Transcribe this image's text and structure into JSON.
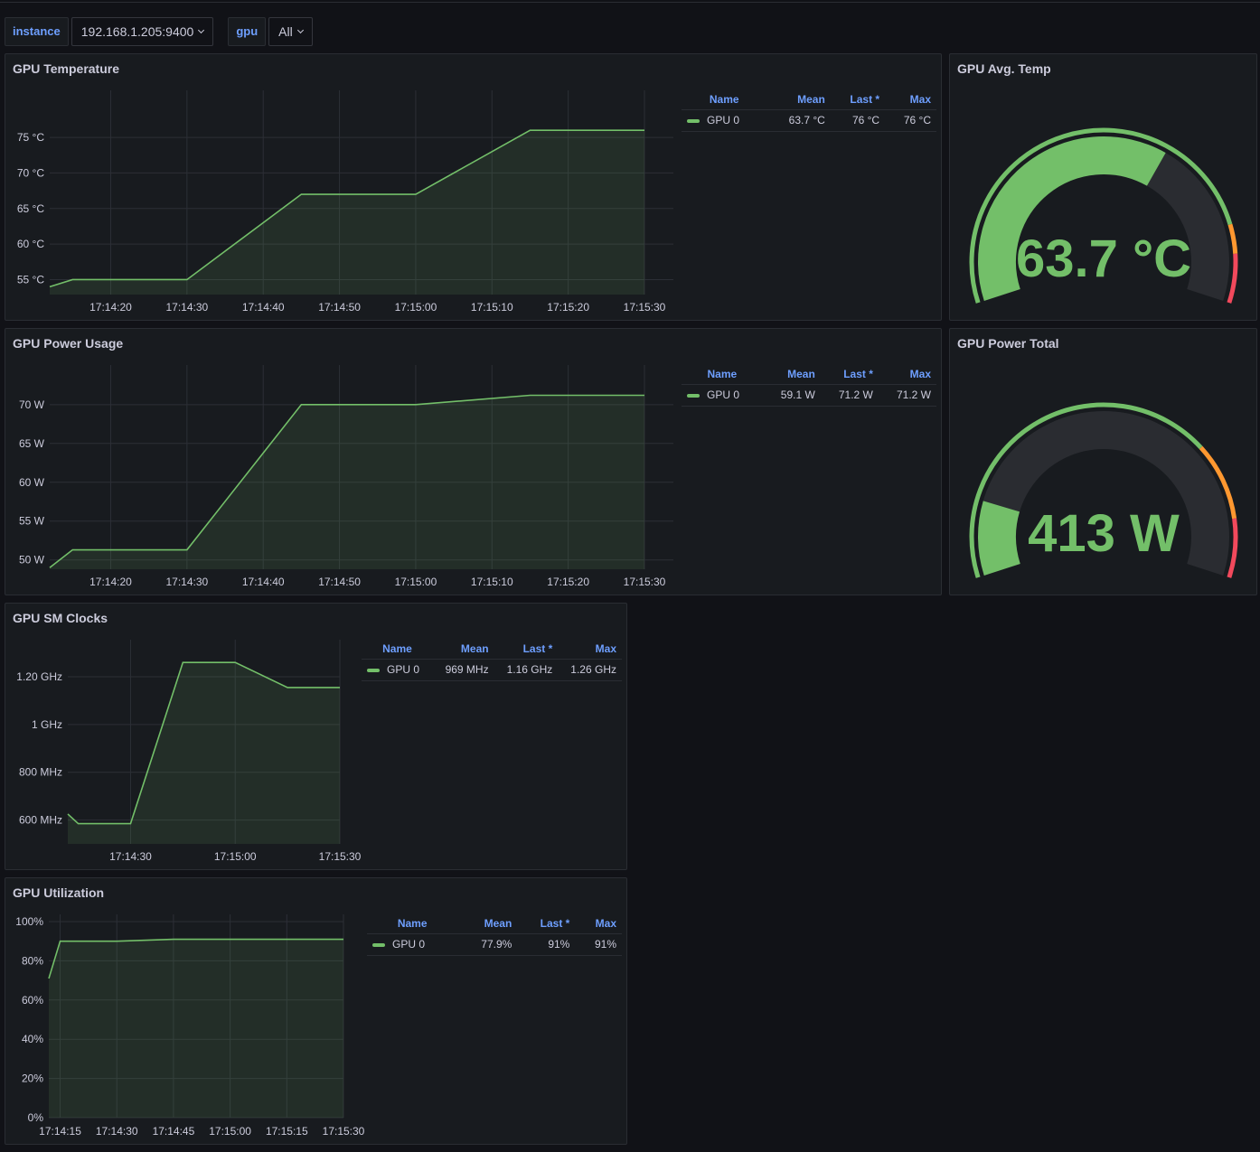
{
  "variables": {
    "instance": {
      "label": "instance",
      "value": "192.168.1.205:9400"
    },
    "gpu": {
      "label": "gpu",
      "value": "All"
    }
  },
  "colors": {
    "series": "#73bf69",
    "warn": "#fade2a",
    "orange": "#ff9830",
    "critical": "#f2495c"
  },
  "panels": {
    "temperature": {
      "title": "GPU Temperature",
      "legend": {
        "headers": [
          "Name",
          "Mean",
          "Last *",
          "Max"
        ],
        "rows": [
          {
            "name": "GPU 0",
            "mean": "63.7 °C",
            "last": "76 °C",
            "max": "76 °C"
          }
        ]
      },
      "chart_data": {
        "type": "area",
        "x_ticks": [
          "17:14:20",
          "17:14:30",
          "17:14:40",
          "17:14:50",
          "17:15:00",
          "17:15:10",
          "17:15:20",
          "17:15:30"
        ],
        "x": [
          "17:14:12",
          "17:14:15",
          "17:14:30",
          "17:14:45",
          "17:15:00",
          "17:15:15",
          "17:15:30"
        ],
        "series": [
          {
            "name": "GPU 0",
            "values": [
              54,
              55,
              55,
              67,
              67,
              76,
              76
            ]
          }
        ],
        "y_ticks": [
          "55 °C",
          "60 °C",
          "65 °C",
          "70 °C",
          "75 °C"
        ],
        "ylim": [
          52.9,
          80.6
        ]
      }
    },
    "avg_temp": {
      "title": "GPU Avg. Temp",
      "value": "63.7 °C",
      "fraction": 0.637
    },
    "power": {
      "title": "GPU Power Usage",
      "legend": {
        "headers": [
          "Name",
          "Mean",
          "Last *",
          "Max"
        ],
        "rows": [
          {
            "name": "GPU 0",
            "mean": "59.1 W",
            "last": "71.2 W",
            "max": "71.2 W"
          }
        ]
      },
      "chart_data": {
        "type": "area",
        "x_ticks": [
          "17:14:20",
          "17:14:30",
          "17:14:40",
          "17:14:50",
          "17:15:00",
          "17:15:10",
          "17:15:20",
          "17:15:30"
        ],
        "x": [
          "17:14:12",
          "17:14:15",
          "17:14:30",
          "17:14:45",
          "17:15:00",
          "17:15:15",
          "17:15:30"
        ],
        "series": [
          {
            "name": "GPU 0",
            "values": [
              49,
              51.3,
              51.3,
              70,
              70,
              71.2,
              71.2
            ]
          }
        ],
        "y_ticks": [
          "50 W",
          "55 W",
          "60 W",
          "65 W",
          "70 W"
        ],
        "ylim": [
          48.8,
          74.4
        ]
      }
    },
    "power_total": {
      "title": "GPU Power Total",
      "value": "413 W",
      "fraction": 0.16
    },
    "clocks": {
      "title": "GPU SM Clocks",
      "legend": {
        "headers": [
          "Name",
          "Mean",
          "Last *",
          "Max"
        ],
        "rows": [
          {
            "name": "GPU 0",
            "mean": "969 MHz",
            "last": "1.16 GHz",
            "max": "1.26 GHz"
          }
        ]
      },
      "chart_data": {
        "type": "area",
        "x_ticks": [
          "17:14:30",
          "17:15:00",
          "17:15:30"
        ],
        "x": [
          "17:14:12",
          "17:14:15",
          "17:14:30",
          "17:14:45",
          "17:15:00",
          "17:15:15",
          "17:15:30"
        ],
        "series": [
          {
            "name": "GPU 0",
            "values": [
              625,
              585,
              585,
              1260,
              1260,
              1155,
              1155
            ]
          }
        ],
        "y_ticks": [
          "600 MHz",
          "800 MHz",
          "1 GHz",
          "1.20 GHz"
        ],
        "ylim": [
          500,
          1325
        ]
      }
    },
    "utilization": {
      "title": "GPU Utilization",
      "legend": {
        "headers": [
          "Name",
          "Mean",
          "Last *",
          "Max"
        ],
        "rows": [
          {
            "name": "GPU 0",
            "mean": "77.9%",
            "last": "91%",
            "max": "91%"
          }
        ]
      },
      "chart_data": {
        "type": "area",
        "x_ticks": [
          "17:14:15",
          "17:14:30",
          "17:14:45",
          "17:15:00",
          "17:15:15",
          "17:15:30"
        ],
        "x": [
          "17:14:12",
          "17:14:15",
          "17:14:30",
          "17:14:45",
          "17:15:00",
          "17:15:15",
          "17:15:30"
        ],
        "series": [
          {
            "name": "GPU 0",
            "values": [
              71,
              90,
              90,
              91,
              91,
              91,
              91
            ]
          }
        ],
        "y_ticks": [
          "0%",
          "20%",
          "40%",
          "60%",
          "80%",
          "100%"
        ],
        "ylim": [
          0,
          100
        ]
      }
    }
  }
}
